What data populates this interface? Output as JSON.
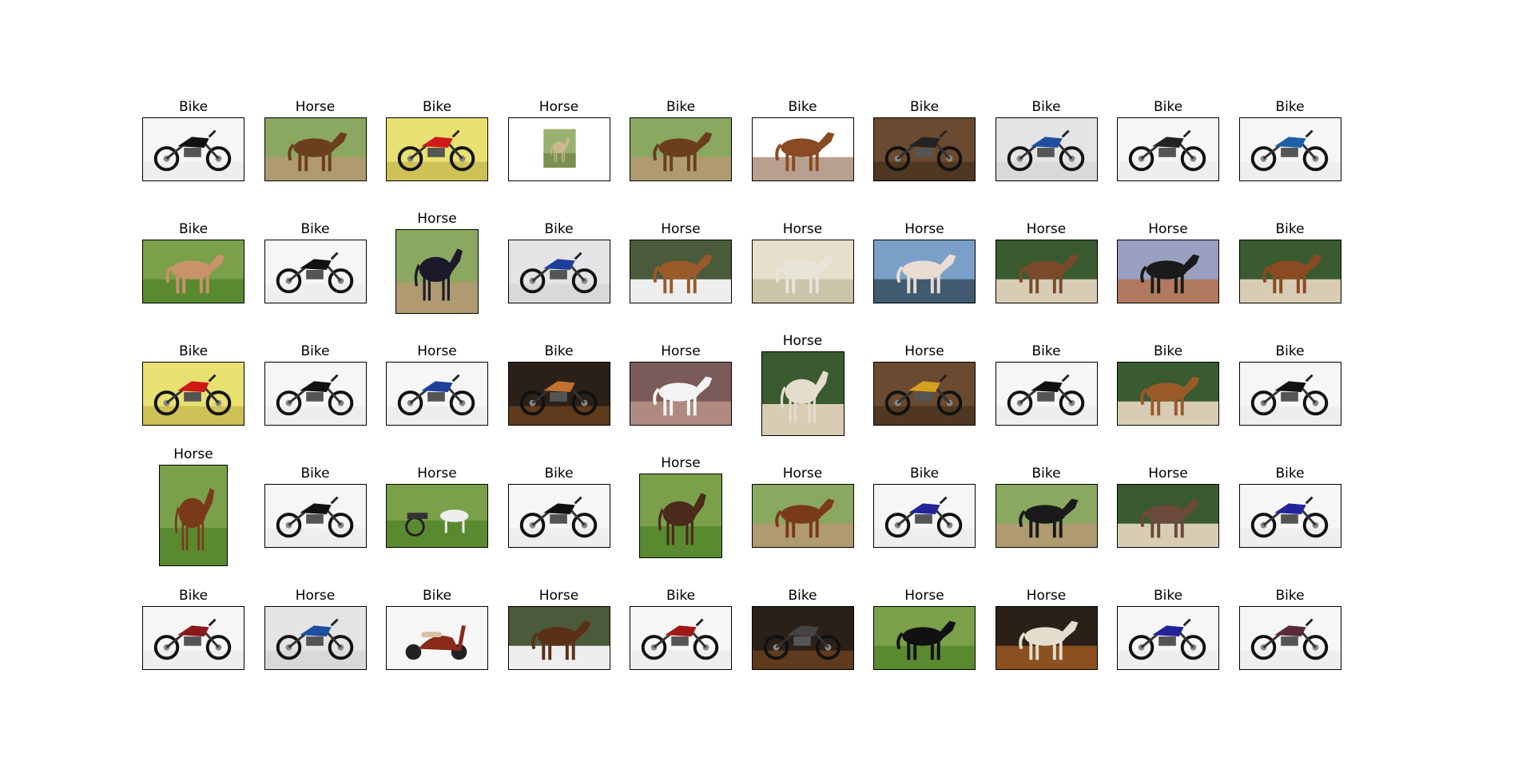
{
  "figure": {
    "layout": "grid",
    "rows": 5,
    "columns": 10
  },
  "images": [
    {
      "label": "Bike",
      "subject": "bike",
      "scene": "white",
      "accent": "#111111",
      "aspect": "wide"
    },
    {
      "label": "Horse",
      "subject": "horse",
      "scene": "field",
      "accent": "#6b3f1d",
      "aspect": "wide"
    },
    {
      "label": "Bike",
      "subject": "bike",
      "scene": "yellow",
      "accent": "#d01818",
      "aspect": "wide"
    },
    {
      "label": "Horse",
      "subject": "horse",
      "scene": "small",
      "accent": "#c8b890",
      "aspect": "wide"
    },
    {
      "label": "Bike",
      "subject": "horse",
      "scene": "field",
      "accent": "#6b3f1d",
      "aspect": "wide"
    },
    {
      "label": "Bike",
      "subject": "horse",
      "scene": "oval",
      "accent": "#8a4a22",
      "aspect": "wide"
    },
    {
      "label": "Bike",
      "subject": "bike",
      "scene": "barn",
      "accent": "#222222",
      "aspect": "wide"
    },
    {
      "label": "Bike",
      "subject": "bike",
      "scene": "grey",
      "accent": "#1f4fa0",
      "aspect": "wide"
    },
    {
      "label": "Bike",
      "subject": "bike",
      "scene": "white",
      "accent": "#222222",
      "aspect": "wide"
    },
    {
      "label": "Bike",
      "subject": "bike",
      "scene": "white",
      "accent": "#1f5fa8",
      "aspect": "wide"
    },
    {
      "label": "Bike",
      "subject": "horse",
      "scene": "green",
      "accent": "#c8926a",
      "aspect": "wide"
    },
    {
      "label": "Bike",
      "subject": "bike",
      "scene": "white",
      "accent": "#111111",
      "aspect": "wide"
    },
    {
      "label": "Horse",
      "subject": "horse",
      "scene": "field",
      "accent": "#1c1a2a",
      "aspect": "tall"
    },
    {
      "label": "Bike",
      "subject": "bike",
      "scene": "grey",
      "accent": "#1f3f9a",
      "aspect": "wide"
    },
    {
      "label": "Horse",
      "subject": "horse",
      "scene": "snow",
      "accent": "#9a5a2a",
      "aspect": "wide"
    },
    {
      "label": "Horse",
      "subject": "horse",
      "scene": "sepia",
      "accent": "#e8e4d8",
      "aspect": "wide"
    },
    {
      "label": "Horse",
      "subject": "horse",
      "scene": "sky",
      "accent": "#e8ddd0",
      "aspect": "wide"
    },
    {
      "label": "Horse",
      "subject": "horse",
      "scene": "trees",
      "accent": "#7a4a2a",
      "aspect": "wide"
    },
    {
      "label": "Horse",
      "subject": "horse",
      "scene": "dirt",
      "accent": "#1a1a1a",
      "aspect": "wide"
    },
    {
      "label": "Bike",
      "subject": "horse",
      "scene": "trees",
      "accent": "#8a4a22",
      "aspect": "wide"
    },
    {
      "label": "Bike",
      "subject": "bike",
      "scene": "yellow",
      "accent": "#d01818",
      "aspect": "wide"
    },
    {
      "label": "Bike",
      "subject": "bike",
      "scene": "white",
      "accent": "#111111",
      "aspect": "wide"
    },
    {
      "label": "Horse",
      "subject": "bike",
      "scene": "white",
      "accent": "#1f3f9a",
      "aspect": "wide"
    },
    {
      "label": "Bike",
      "subject": "bike",
      "scene": "dark",
      "accent": "#c07030",
      "aspect": "wide"
    },
    {
      "label": "Horse",
      "subject": "horse",
      "scene": "dusk",
      "accent": "#f4f4f4",
      "aspect": "wide"
    },
    {
      "label": "Horse",
      "subject": "horse",
      "scene": "trees",
      "accent": "#e4dccc",
      "aspect": "tall"
    },
    {
      "label": "Horse",
      "subject": "bike",
      "scene": "barn",
      "accent": "#d4a020",
      "aspect": "wide"
    },
    {
      "label": "Bike",
      "subject": "bike",
      "scene": "white",
      "accent": "#111111",
      "aspect": "wide"
    },
    {
      "label": "Bike",
      "subject": "horse",
      "scene": "trees",
      "accent": "#9a5a2a",
      "aspect": "wide"
    },
    {
      "label": "Bike",
      "subject": "bike",
      "scene": "white",
      "accent": "#111111",
      "aspect": "wide"
    },
    {
      "label": "Horse",
      "subject": "horse",
      "scene": "green",
      "accent": "#7a3a1a",
      "aspect": "portrait"
    },
    {
      "label": "Bike",
      "subject": "bike",
      "scene": "white",
      "accent": "#111111",
      "aspect": "wide"
    },
    {
      "label": "Horse",
      "subject": "cart",
      "scene": "green",
      "accent": "#eeeeee",
      "aspect": "wide"
    },
    {
      "label": "Bike",
      "subject": "bike",
      "scene": "white",
      "accent": "#111111",
      "aspect": "wide"
    },
    {
      "label": "Horse",
      "subject": "horse",
      "scene": "green",
      "accent": "#4a2a1a",
      "aspect": "tall"
    },
    {
      "label": "Horse",
      "subject": "horse",
      "scene": "field",
      "accent": "#7a3a1a",
      "aspect": "wide"
    },
    {
      "label": "Bike",
      "subject": "bike",
      "scene": "white",
      "accent": "#23239a",
      "aspect": "wide"
    },
    {
      "label": "Bike",
      "subject": "horse",
      "scene": "field",
      "accent": "#1a1a1a",
      "aspect": "wide"
    },
    {
      "label": "Horse",
      "subject": "horse",
      "scene": "trees",
      "accent": "#6a4a3a",
      "aspect": "wide"
    },
    {
      "label": "Bike",
      "subject": "bike",
      "scene": "white",
      "accent": "#23239a",
      "aspect": "wide"
    },
    {
      "label": "Bike",
      "subject": "bike",
      "scene": "white",
      "accent": "#8a1a1a",
      "aspect": "wide"
    },
    {
      "label": "Horse",
      "subject": "bike",
      "scene": "grey",
      "accent": "#1f4fa0",
      "aspect": "wide"
    },
    {
      "label": "Bike",
      "subject": "scooter",
      "scene": "white",
      "accent": "#8a2a1a",
      "aspect": "wide"
    },
    {
      "label": "Horse",
      "subject": "horse",
      "scene": "snow",
      "accent": "#5a3018",
      "aspect": "wide"
    },
    {
      "label": "Bike",
      "subject": "bike",
      "scene": "white",
      "accent": "#a01818",
      "aspect": "wide"
    },
    {
      "label": "Bike",
      "subject": "bike",
      "scene": "dark",
      "accent": "#444444",
      "aspect": "wide"
    },
    {
      "label": "Horse",
      "subject": "horse",
      "scene": "green",
      "accent": "#111111",
      "aspect": "wide"
    },
    {
      "label": "Horse",
      "subject": "horse",
      "scene": "dark",
      "accent": "#e4dccc",
      "aspect": "wide"
    },
    {
      "label": "Bike",
      "subject": "bike",
      "scene": "white",
      "accent": "#23239a",
      "aspect": "wide"
    },
    {
      "label": "Bike",
      "subject": "bike",
      "scene": "white",
      "accent": "#5a2a3a",
      "aspect": "wide"
    }
  ]
}
